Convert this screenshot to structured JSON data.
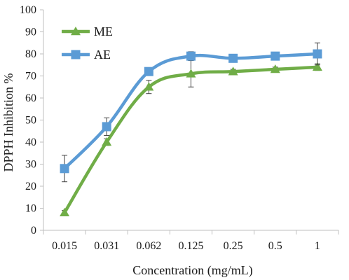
{
  "chart_data": {
    "type": "line",
    "title": "",
    "xlabel": "Concentration (mg/mL)",
    "ylabel": "DPPH Inhibition %",
    "categories": [
      "0.015",
      "0.031",
      "0.062",
      "0.125",
      "0.25",
      "0.5",
      "1"
    ],
    "ylim": [
      0,
      100
    ],
    "yticks": [
      "0",
      "10",
      "20",
      "30",
      "40",
      "50",
      "60",
      "70",
      "80",
      "90",
      "100"
    ],
    "grid": false,
    "legend_position": "top-left",
    "series": [
      {
        "name": "ME",
        "marker": "triangle",
        "color": "#70ad47",
        "values": [
          8,
          40,
          65,
          71,
          72,
          73,
          74
        ],
        "errors": [
          1,
          1.5,
          3,
          6,
          1,
          1,
          1.5
        ]
      },
      {
        "name": "AE",
        "marker": "square",
        "color": "#5b9bd5",
        "values": [
          28,
          47,
          72,
          79,
          78,
          79,
          80
        ],
        "errors": [
          6,
          4,
          1.5,
          2,
          1,
          1,
          5
        ]
      }
    ]
  }
}
